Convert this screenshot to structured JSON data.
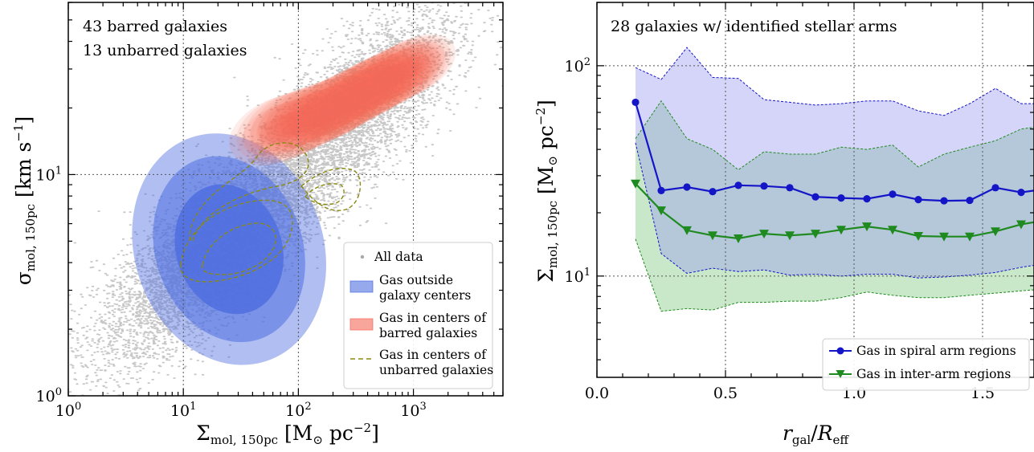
{
  "chart_data": [
    {
      "type": "scatter",
      "notes": [
        "43 barred galaxies",
        "13 unbarred galaxies"
      ],
      "xlabel": "Σmol, 150pc [M⊙ pc−2]",
      "ylabel": "σmol, 150pc [km s−1]",
      "xscale": "log",
      "yscale": "log",
      "xlim": [
        1,
        6000
      ],
      "ylim": [
        1,
        60
      ],
      "xticks": [
        1,
        10,
        100,
        1000
      ],
      "yticks": [
        1,
        10
      ],
      "grid": true,
      "legend_position": "lower-right",
      "series": [
        {
          "name": "All data",
          "color": "#b4b4b4",
          "kind": "points"
        },
        {
          "name": "Gas outside galaxy centers",
          "color": "#4f6fe0",
          "kind": "filled-density",
          "center": [
            25,
            4.6
          ],
          "levels": [
            {
              "sx": 0.46,
              "sy": 0.115,
              "rot": 0.62
            },
            {
              "sx": 0.64,
              "sy": 0.165,
              "rot": 0.62
            },
            {
              "sx": 0.82,
              "sy": 0.205,
              "rot": 0.62
            }
          ]
        },
        {
          "name": "Gas in centers of barred galaxies",
          "color": "#f46a58",
          "kind": "filled-density",
          "ridge": [
            [
              70,
              16
            ],
            [
              200,
              20
            ],
            [
              450,
              25
            ],
            [
              1000,
              31
            ]
          ]
        },
        {
          "name": "Gas in centers of unbarred galaxies",
          "color": "#8a8a10",
          "kind": "dashed-contour"
        }
      ]
    },
    {
      "type": "line",
      "notes": [
        "28 galaxies w/ identified stellar arms"
      ],
      "xlabel": "rgal/Reff",
      "ylabel": "Σmol, 150pc [M⊙ pc−2]",
      "yscale": "log",
      "xlim": [
        0,
        1.7
      ],
      "ylim": [
        3.3,
        200
      ],
      "xticks": [
        0.0,
        0.5,
        1.0,
        1.5
      ],
      "yticks": [
        10,
        100
      ],
      "grid": true,
      "legend_position": "lower-right",
      "x": [
        0.15,
        0.25,
        0.35,
        0.45,
        0.55,
        0.65,
        0.75,
        0.85,
        0.95,
        1.05,
        1.15,
        1.25,
        1.35,
        1.45,
        1.55,
        1.65,
        1.75
      ],
      "series": [
        {
          "name": "Gas in spiral arm regions",
          "color": "#1515c8",
          "marker": "circle",
          "values": [
            67,
            25.5,
            26.5,
            25.2,
            27,
            26.8,
            26.3,
            23.8,
            23.5,
            23.3,
            24.5,
            23.1,
            22.8,
            22.9,
            26.3,
            25,
            26
          ],
          "upper": [
            98,
            86,
            122,
            88,
            87,
            69,
            67,
            65,
            66,
            68,
            68,
            61,
            58,
            66,
            78,
            66,
            66
          ],
          "lower": [
            43,
            12.8,
            10.3,
            10.9,
            10.5,
            10.7,
            10.1,
            10.2,
            10.0,
            10.2,
            10.2,
            9.8,
            9.9,
            10.1,
            10.4,
            11,
            11.5
          ]
        },
        {
          "name": "Gas in inter-arm regions",
          "color": "#1f8a1f",
          "marker": "triangle-down",
          "values": [
            27.5,
            20.5,
            16.5,
            15.6,
            15.1,
            15.9,
            15.6,
            15.9,
            16.6,
            17.2,
            16.6,
            15.5,
            15.4,
            15.4,
            16.3,
            17.6,
            18.5
          ],
          "upper": [
            45,
            68,
            45,
            40,
            32,
            39,
            38,
            38,
            41,
            40,
            42,
            33,
            38,
            41,
            44,
            50,
            52
          ],
          "lower": [
            15,
            6.8,
            7.0,
            6.9,
            7.5,
            7.5,
            7.6,
            7.6,
            7.9,
            8.4,
            8.1,
            7.9,
            7.9,
            8.1,
            8.3,
            8.5,
            8.7
          ]
        }
      ]
    }
  ]
}
